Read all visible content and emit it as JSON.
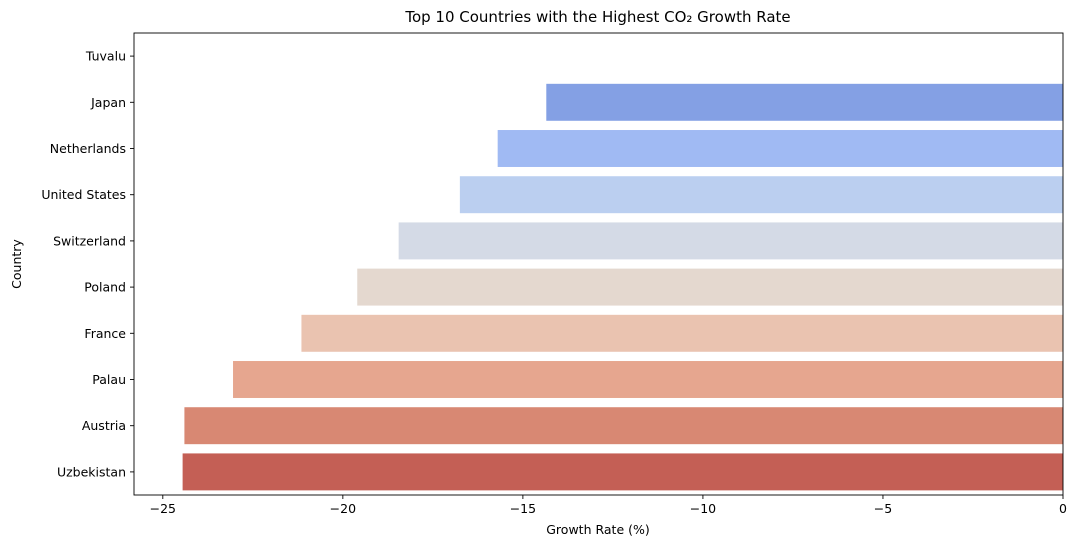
{
  "chart_data": {
    "type": "bar",
    "orientation": "horizontal",
    "title": "Top 10 Countries with the Highest CO₂ Growth Rate",
    "xlabel": "Growth Rate (%)",
    "ylabel": "Country",
    "xlim": [
      -25.8,
      0
    ],
    "xticks": [
      -25,
      -20,
      -15,
      -10,
      -5,
      0
    ],
    "xtick_labels": [
      "−25",
      "−20",
      "−15",
      "−10",
      "−5",
      "0"
    ],
    "grid": false,
    "categories": [
      "Tuvalu",
      "Japan",
      "Netherlands",
      "United States",
      "Switzerland",
      "Poland",
      "France",
      "Palau",
      "Austria",
      "Uzbekistan"
    ],
    "values": [
      0,
      -14.35,
      -15.7,
      -16.75,
      -18.45,
      -19.6,
      -21.15,
      -23.05,
      -24.4,
      -24.45
    ],
    "colors": [
      "#3b4cc0",
      "#84a0e4",
      "#a0baf3",
      "#bbcff0",
      "#d4dae6",
      "#e4d8cf",
      "#eac3b0",
      "#e6a68f",
      "#d88873",
      "#c45f55"
    ]
  }
}
